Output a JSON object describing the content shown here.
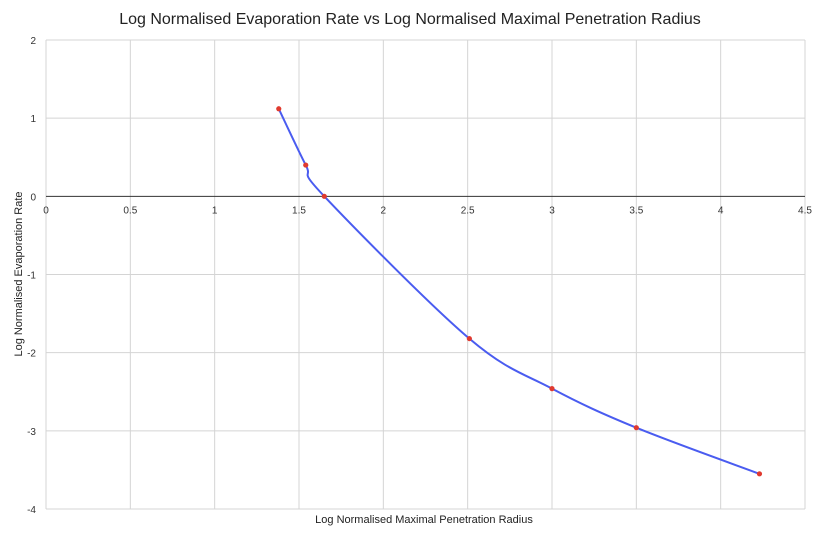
{
  "chart_data": {
    "type": "line",
    "title": "Log Normalised Evaporation Rate vs Log Normalised Maximal Penetration Radius",
    "xlabel": "Log Normalised Maximal Penetration Radius",
    "ylabel": "Log Normalised Evaporation Rate",
    "xlim": [
      0,
      4.5
    ],
    "ylim": [
      -4,
      2
    ],
    "x_ticks": [
      "0",
      "0.5",
      "1",
      "1.5",
      "2",
      "2.5",
      "3",
      "3.5",
      "4",
      "4.5"
    ],
    "y_ticks": [
      "2",
      "1",
      "0",
      "-1",
      "-2",
      "-3",
      "-4"
    ],
    "grid": true,
    "series": [
      {
        "x": [
          1.38,
          1.54,
          1.65,
          2.51,
          3.0,
          3.5,
          4.23
        ],
        "y": [
          1.12,
          0.4,
          0.0,
          -1.82,
          -2.46,
          -2.96,
          -3.55
        ]
      }
    ],
    "colors": {
      "line": "#4a5cf0",
      "marker": "#e03a2f",
      "grid": "#d4d4d4"
    }
  }
}
